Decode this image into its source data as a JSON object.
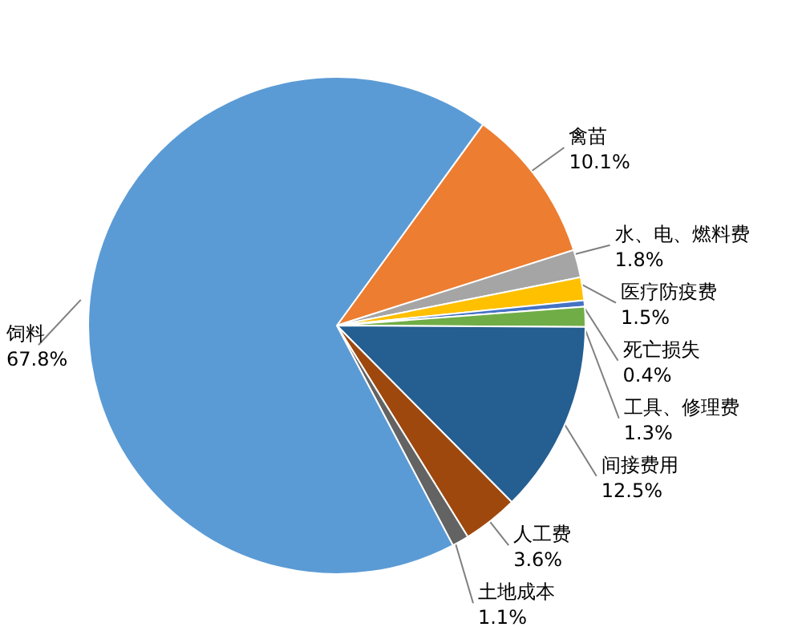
{
  "chart_data": {
    "type": "pie",
    "categories": [
      "禽苗",
      "水、电、燃料费",
      "医疗防疫费",
      "死亡损失",
      "工具、修理费",
      "间接费用",
      "人工费",
      "土地成本",
      "饲料"
    ],
    "values": [
      10.1,
      1.8,
      1.5,
      0.4,
      1.3,
      12.5,
      3.6,
      1.1,
      67.8
    ],
    "colors": [
      "#ed7d31",
      "#a5a5a5",
      "#ffc000",
      "#4472c4",
      "#70ad47",
      "#255e91",
      "#9e480e",
      "#636363",
      "#5b9bd5"
    ],
    "value_labels": [
      "10.1%",
      "1.8%",
      "1.5%",
      "0.4%",
      "1.3%",
      "12.5%",
      "3.6%",
      "1.1%",
      "67.8%"
    ]
  }
}
